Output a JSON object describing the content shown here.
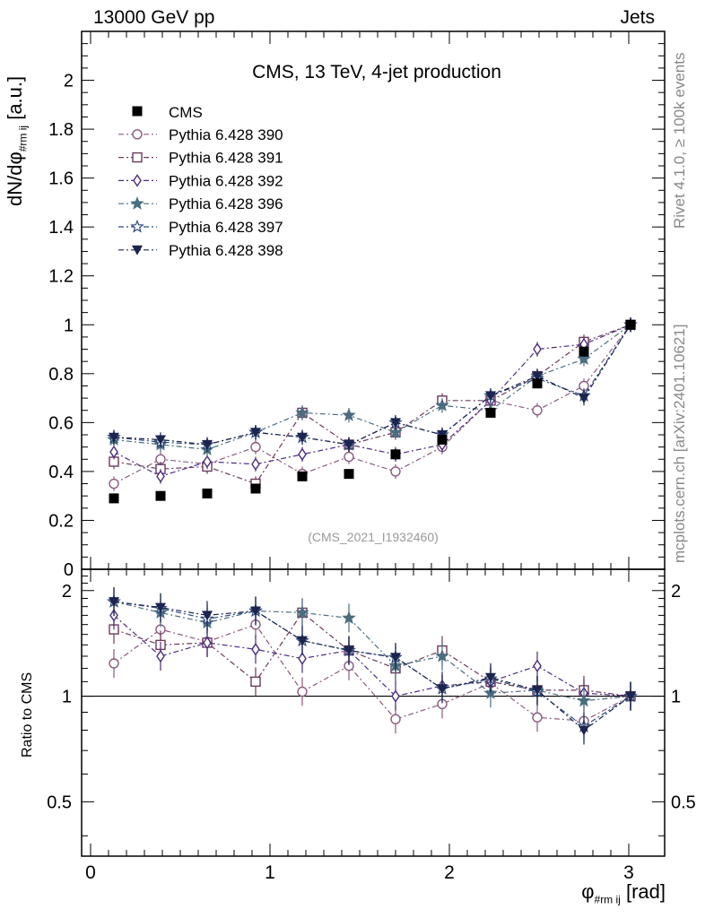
{
  "header": {
    "left": "13000 GeV pp",
    "right": "Jets"
  },
  "side_labels": {
    "rivet": "Rivet 4.1.0, ≥ 100k events",
    "mcplots": "mcplots.cern.ch [arXiv:2401.10621]"
  },
  "axes": {
    "ylabel_main_base": "dN/dφ",
    "ylabel_main_sub": "#rm ij",
    "ylabel_main_unit": " [a.u.]",
    "ylabel_ratio": "Ratio to CMS",
    "xlabel_base": "φ",
    "xlabel_sub": "#rm ij",
    "xlabel_unit": " [rad]"
  },
  "chart_data": {
    "type": "scatter",
    "title": "CMS, 13 TeV, 4-jet production",
    "analysis_tag": "(CMS_2021_I1932460)",
    "x": [
      0.13,
      0.39,
      0.65,
      0.92,
      1.18,
      1.44,
      1.7,
      1.96,
      2.23,
      2.49,
      2.75,
      3.01
    ],
    "xlim": [
      -0.05,
      3.2
    ],
    "xticks": [
      "0",
      "1",
      "2",
      "3"
    ],
    "ylim": [
      0,
      2.2
    ],
    "yticks": [
      "0",
      "0.2",
      "0.4",
      "0.6",
      "0.8",
      "1",
      "1.2",
      "1.4",
      "1.6",
      "1.8",
      "2"
    ],
    "ratio_ylim": [
      0.35,
      2.3
    ],
    "ratio_yticks": [
      "0.5",
      "1",
      "2"
    ],
    "data": {
      "name": "CMS",
      "color": "#000000",
      "marker": "square-filled",
      "values": [
        0.29,
        0.3,
        0.31,
        0.33,
        0.38,
        0.39,
        0.47,
        0.53,
        0.64,
        0.76,
        0.89,
        1.0
      ]
    },
    "series": [
      {
        "name": "Pythia 6.428 390",
        "color": "#8a5a80",
        "marker": "circle-open",
        "values": [
          0.35,
          0.45,
          0.43,
          0.5,
          0.39,
          0.46,
          0.4,
          0.5,
          0.69,
          0.65,
          0.75,
          1.0
        ],
        "ratio": [
          1.24,
          1.55,
          1.43,
          1.6,
          1.03,
          1.22,
          0.86,
          0.95,
          1.09,
          0.87,
          0.85,
          1.0
        ]
      },
      {
        "name": "Pythia 6.428 391",
        "color": "#6a3a5e",
        "marker": "square-open",
        "values": [
          0.44,
          0.41,
          0.42,
          0.35,
          0.64,
          0.51,
          0.56,
          0.69,
          0.69,
          0.79,
          0.93,
          1.0
        ],
        "ratio": [
          1.55,
          1.4,
          1.42,
          1.1,
          1.73,
          1.35,
          1.2,
          1.35,
          1.1,
          1.04,
          1.04,
          1.0
        ]
      },
      {
        "name": "Pythia 6.428 392",
        "color": "#4b2c80",
        "marker": "diamond-open",
        "values": [
          0.48,
          0.38,
          0.44,
          0.43,
          0.47,
          0.51,
          0.47,
          0.51,
          0.69,
          0.9,
          0.92,
          1.0
        ],
        "ratio": [
          1.7,
          1.3,
          1.42,
          1.36,
          1.28,
          1.35,
          1.0,
          1.07,
          1.1,
          1.22,
          1.02,
          1.0
        ]
      },
      {
        "name": "Pythia 6.428 396",
        "color": "#4a6e80",
        "marker": "star-filled",
        "values": [
          0.53,
          0.51,
          0.49,
          0.56,
          0.64,
          0.63,
          0.56,
          0.67,
          0.65,
          0.79,
          0.86,
          1.0
        ],
        "ratio": [
          1.86,
          1.73,
          1.62,
          1.75,
          1.73,
          1.67,
          1.22,
          1.3,
          1.02,
          1.04,
          0.97,
          1.0
        ]
      },
      {
        "name": "Pythia 6.428 397",
        "color": "#2e4a78",
        "marker": "star-open",
        "values": [
          0.54,
          0.52,
          0.51,
          0.56,
          0.54,
          0.51,
          0.6,
          0.55,
          0.71,
          0.78,
          0.71,
          1.0
        ],
        "ratio": [
          1.86,
          1.78,
          1.66,
          1.75,
          1.44,
          1.35,
          1.29,
          1.05,
          1.12,
          1.03,
          0.82,
          1.0
        ]
      },
      {
        "name": "Pythia 6.428 398",
        "color": "#1c2450",
        "marker": "triangle-down-filled",
        "values": [
          0.54,
          0.53,
          0.51,
          0.56,
          0.54,
          0.51,
          0.6,
          0.55,
          0.71,
          0.79,
          0.7,
          1.0
        ],
        "ratio": [
          1.86,
          1.79,
          1.7,
          1.75,
          1.44,
          1.35,
          1.29,
          1.05,
          1.13,
          1.04,
          0.8,
          1.0
        ]
      }
    ]
  }
}
